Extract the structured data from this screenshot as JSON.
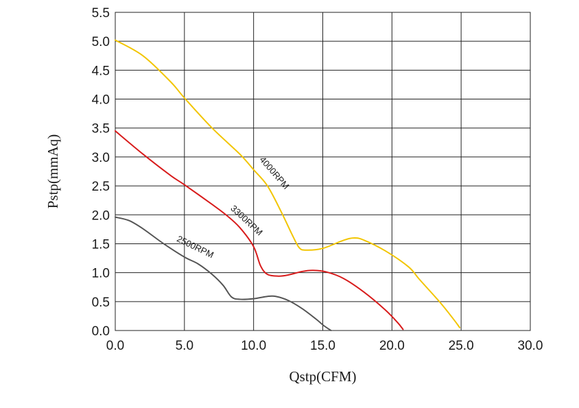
{
  "chart_data": {
    "type": "line",
    "title": "",
    "xlabel": "Qstp(CFM)",
    "ylabel": "Pstp(mmAq)",
    "xlim": [
      0,
      30
    ],
    "ylim": [
      0,
      5.5
    ],
    "grid": true,
    "xticks": [
      0,
      5,
      10,
      15,
      20,
      25,
      30
    ],
    "xtick_labels": [
      "0.0",
      "5.0",
      "10.0",
      "15.0",
      "20.0",
      "25.0",
      "30.0"
    ],
    "yticks": [
      0,
      0.5,
      1,
      1.5,
      2,
      2.5,
      3,
      3.5,
      4,
      4.5,
      5,
      5.5
    ],
    "ytick_labels": [
      "0.0",
      "0.5",
      "1.0",
      "1.5",
      "2.0",
      "2.5",
      "3.0",
      "3.5",
      "4.0",
      "4.5",
      "5.0",
      "5.5"
    ],
    "series": [
      {
        "name": "4000RPM",
        "color": "#f2c500",
        "points": [
          [
            0,
            5.02
          ],
          [
            2,
            4.75
          ],
          [
            4,
            4.3
          ],
          [
            5,
            4.02
          ],
          [
            7,
            3.5
          ],
          [
            9,
            3.05
          ],
          [
            10,
            2.78
          ],
          [
            11,
            2.5
          ],
          [
            12,
            2.05
          ],
          [
            12.8,
            1.65
          ],
          [
            13.3,
            1.43
          ],
          [
            13.8,
            1.39
          ],
          [
            15,
            1.42
          ],
          [
            16.5,
            1.56
          ],
          [
            17.3,
            1.6
          ],
          [
            18,
            1.56
          ],
          [
            19.5,
            1.38
          ],
          [
            21.2,
            1.1
          ],
          [
            22,
            0.88
          ],
          [
            23.5,
            0.48
          ],
          [
            24.5,
            0.18
          ],
          [
            24.9,
            0.05
          ]
        ]
      },
      {
        "name": "3300RPM",
        "color": "#d81c1c",
        "points": [
          [
            0,
            3.45
          ],
          [
            2,
            3.05
          ],
          [
            4,
            2.68
          ],
          [
            5,
            2.52
          ],
          [
            7,
            2.18
          ],
          [
            8,
            2.0
          ],
          [
            9,
            1.78
          ],
          [
            10,
            1.45
          ],
          [
            10.5,
            1.12
          ],
          [
            11,
            0.97
          ],
          [
            11.8,
            0.94
          ],
          [
            12.5,
            0.96
          ],
          [
            13.5,
            1.02
          ],
          [
            14.3,
            1.04
          ],
          [
            15.3,
            1.01
          ],
          [
            16.5,
            0.9
          ],
          [
            18,
            0.66
          ],
          [
            19.5,
            0.36
          ],
          [
            20.4,
            0.14
          ],
          [
            20.8,
            0.02
          ]
        ]
      },
      {
        "name": "2500RPM",
        "color": "#555555",
        "points": [
          [
            0,
            1.96
          ],
          [
            1,
            1.9
          ],
          [
            2,
            1.76
          ],
          [
            3.5,
            1.5
          ],
          [
            5,
            1.27
          ],
          [
            6,
            1.15
          ],
          [
            7,
            0.97
          ],
          [
            7.8,
            0.78
          ],
          [
            8.4,
            0.58
          ],
          [
            9,
            0.54
          ],
          [
            10,
            0.55
          ],
          [
            11,
            0.59
          ],
          [
            11.6,
            0.59
          ],
          [
            12.5,
            0.52
          ],
          [
            13.5,
            0.38
          ],
          [
            14.5,
            0.2
          ],
          [
            15.1,
            0.08
          ],
          [
            15.6,
            0.0
          ]
        ]
      }
    ],
    "annotations": [
      {
        "text": "4000RPM",
        "series": "4000RPM",
        "at": [
          10.4,
          2.95
        ],
        "angle": 49
      },
      {
        "text": "3300RPM",
        "series": "3300RPM",
        "at": [
          8.3,
          2.1
        ],
        "angle": 43
      },
      {
        "text": "2500RPM",
        "series": "2500RPM",
        "at": [
          4.4,
          1.55
        ],
        "angle": 26
      }
    ]
  }
}
